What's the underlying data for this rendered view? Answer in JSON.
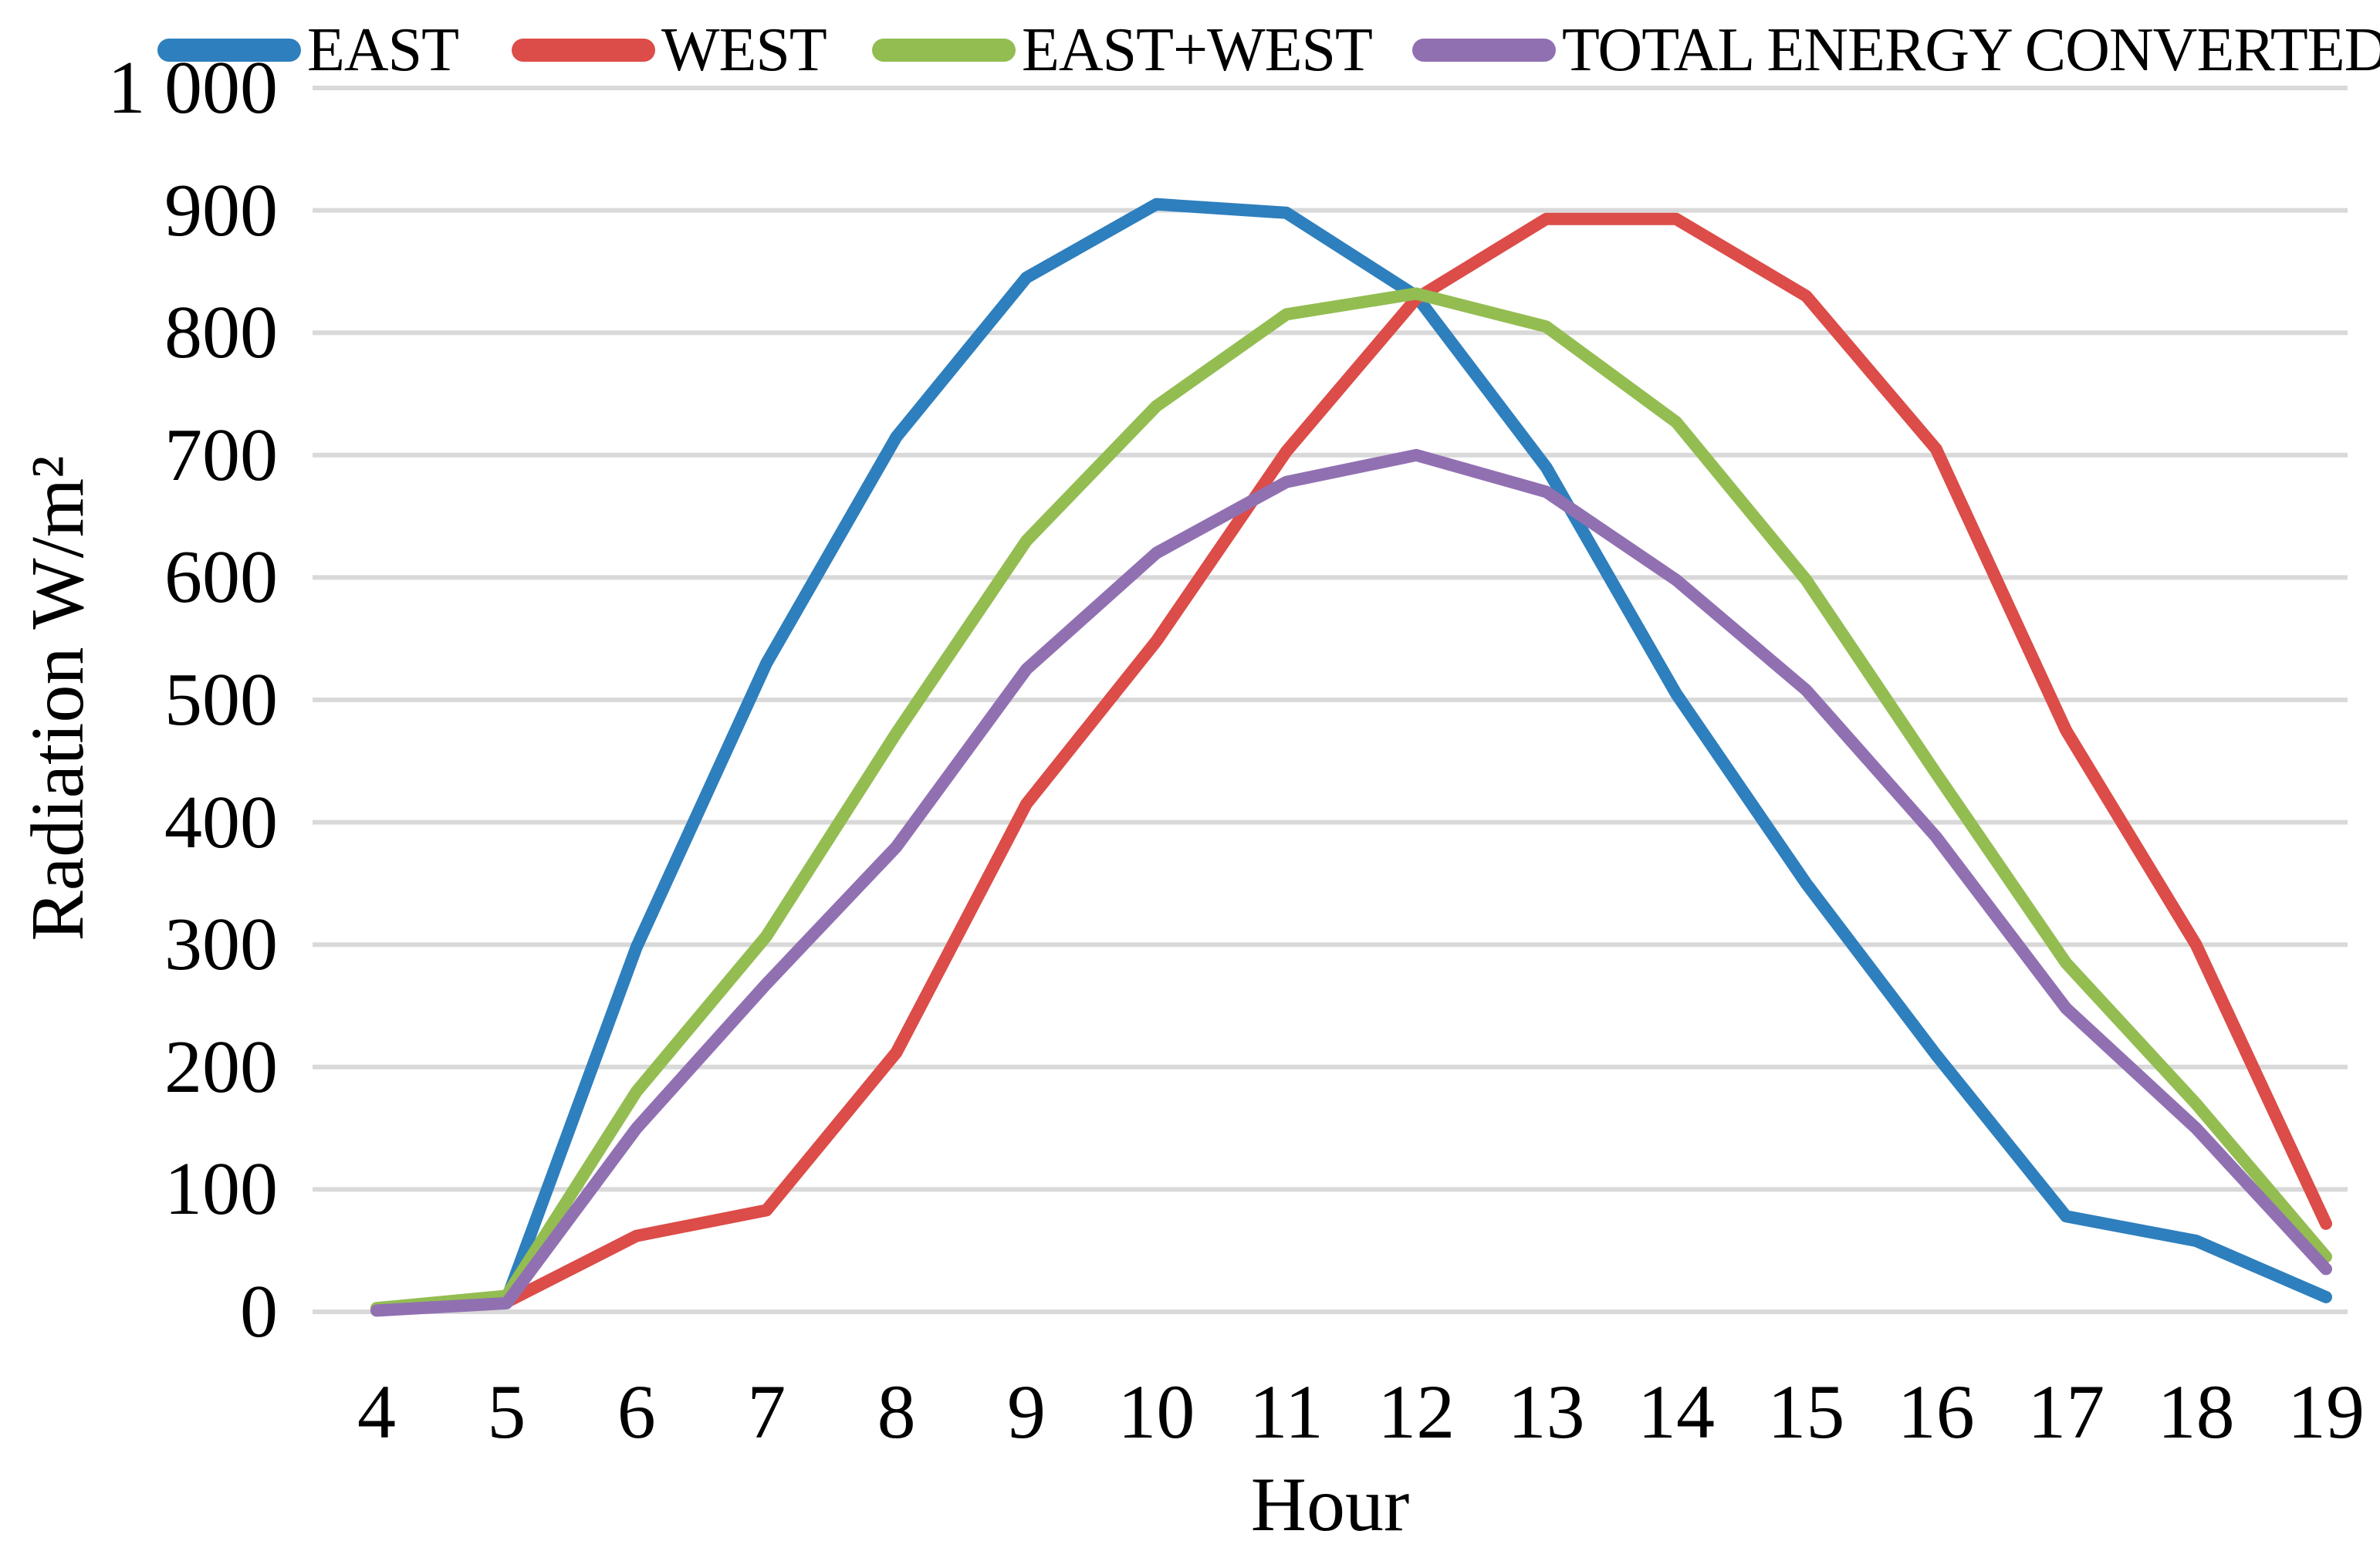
{
  "chart_data": {
    "type": "line",
    "title": "",
    "xlabel": "Hour",
    "ylabel": "Radiation W/m²",
    "x": [
      4,
      5,
      6,
      7,
      8,
      9,
      10,
      11,
      12,
      13,
      14,
      15,
      16,
      17,
      18,
      19
    ],
    "series": [
      {
        "name": "EAST",
        "color": "#2E7FBD",
        "values": [
          2,
          10,
          298,
          530,
          715,
          845,
          905,
          898,
          830,
          690,
          505,
          350,
          210,
          78,
          58,
          12
        ]
      },
      {
        "name": "WEST",
        "color": "#DC4C48",
        "values": [
          2,
          8,
          62,
          83,
          212,
          415,
          548,
          703,
          828,
          893,
          893,
          830,
          705,
          475,
          300,
          72
        ]
      },
      {
        "name": "EAST+WEST",
        "color": "#93BD51",
        "values": [
          3,
          13,
          180,
          307,
          473,
          630,
          740,
          815,
          832,
          805,
          727,
          598,
          440,
          285,
          170,
          45
        ]
      },
      {
        "name": "TOTAL ENERGY CONVERTED",
        "color": "#9170B2",
        "values": [
          1,
          7,
          150,
          268,
          380,
          525,
          620,
          678,
          700,
          670,
          598,
          508,
          388,
          248,
          150,
          35
        ]
      }
    ],
    "ylim": [
      0,
      1000
    ],
    "y_ticks": [
      0,
      100,
      200,
      300,
      400,
      500,
      600,
      700,
      800,
      900,
      1000
    ],
    "y_tick_labels": [
      "0",
      "100",
      "200",
      "300",
      "400",
      "500",
      "600",
      "700",
      "800",
      "900",
      "1 000"
    ],
    "x_tick_labels": [
      "4",
      "5",
      "6",
      "7",
      "8",
      "9",
      "10",
      "11",
      "12",
      "13",
      "14",
      "15",
      "16",
      "17",
      "18",
      "19"
    ],
    "grid": true,
    "gridline_color": "#D9D9D9",
    "legend_position": "top",
    "background": "#FFFFFF",
    "axis_text_color": "#000000"
  }
}
